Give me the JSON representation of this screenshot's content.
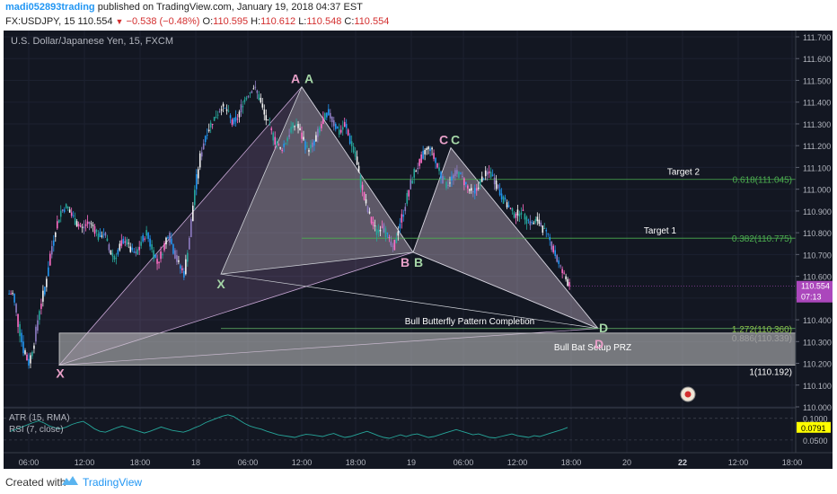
{
  "header": {
    "author": "madi052893trading",
    "published": "published on TradingView.com, January 19, 2018 04:37 EST",
    "symbol": "FX:USDJPY, 15",
    "last": "110.554",
    "change": "−0.538 (−0.48%)",
    "o_label": "O:",
    "o_value": "110.595",
    "h_label": "H:",
    "h_value": "110.612",
    "l_label": "L:",
    "l_value": "110.548",
    "c_label": "C:",
    "c_value": "110.554"
  },
  "footer": {
    "created_with": "Created with",
    "brand": "TradingView"
  },
  "chart_data": {
    "type": "candlestick",
    "title": "U.S. Dollar/Japanese Yen, 15, FXCM",
    "ylim": [
      110.0,
      111.75
    ],
    "price_ticks": [
      "111.700",
      "111.600",
      "111.500",
      "111.400",
      "111.300",
      "111.200",
      "111.100",
      "111.000",
      "110.900",
      "110.800",
      "110.700",
      "110.600",
      "110.500",
      "110.400",
      "110.300",
      "110.200",
      "110.100",
      "110.000"
    ],
    "time_ticks": [
      "06:00",
      "12:00",
      "18:00",
      "18",
      "06:00",
      "12:00",
      "18:00",
      "19",
      "06:00",
      "12:00",
      "18:00",
      "20",
      "22",
      "12:00",
      "18:00"
    ],
    "time_tick_bold": [
      false,
      false,
      false,
      false,
      false,
      false,
      false,
      false,
      false,
      false,
      false,
      false,
      true,
      false,
      false
    ],
    "last_price": {
      "value": "110.554",
      "countdown": "07:13"
    },
    "pattern_points": [
      {
        "name": "X",
        "price": 110.192
      },
      {
        "name": "A",
        "price": 111.47
      },
      {
        "name": "X",
        "price": 110.61
      },
      {
        "name": "B",
        "price": 110.71
      },
      {
        "name": "C",
        "price": 111.19
      },
      {
        "name": "D",
        "price": 110.36
      }
    ],
    "point_labels": {
      "X1": "X",
      "A1": "A",
      "A2": "A",
      "X2": "X",
      "B1": "B",
      "B2": "B",
      "C1": "C",
      "C2": "C",
      "D1": "D",
      "D2": "D"
    },
    "levels": [
      {
        "label": "Target 2",
        "ratio": "0.618(111.045)",
        "price": 111.045
      },
      {
        "label": "Target 1",
        "ratio": "0.382(110.775)",
        "price": 110.775
      },
      {
        "label": "Bull Butterfly Pattern Completion",
        "ratio": "1.272(110.360)",
        "price": 110.36
      },
      {
        "label": "Bull Bat Setup PRZ",
        "ratio": "0.886(110.339)",
        "price": 110.339
      },
      {
        "label": "",
        "ratio": "1(110.192)",
        "price": 110.192
      }
    ],
    "series": [
      {
        "prices": [
          110.52,
          110.38,
          110.26,
          110.2,
          110.3,
          110.45,
          110.55,
          110.7,
          110.82,
          110.9,
          110.92,
          110.88,
          110.84,
          110.82,
          110.85,
          110.83,
          110.78,
          110.8,
          110.72,
          110.68,
          110.74,
          110.77,
          110.72,
          110.7,
          110.76,
          110.8,
          110.72,
          110.66,
          110.72,
          110.8,
          110.72,
          110.65,
          110.61,
          110.78,
          111.0,
          111.15,
          111.25,
          111.3,
          111.34,
          111.38,
          111.36,
          111.3,
          111.33,
          111.4,
          111.44,
          111.47,
          111.42,
          111.34,
          111.28,
          111.22,
          111.18,
          111.22,
          111.28,
          111.3,
          111.24,
          111.18,
          111.2,
          111.26,
          111.32,
          111.35,
          111.3,
          111.26,
          111.3,
          111.22,
          111.15,
          111.02,
          110.92,
          110.85,
          110.8,
          110.84,
          110.78,
          110.72,
          110.82,
          110.9,
          111.0,
          111.08,
          111.12,
          111.18,
          111.19,
          111.12,
          111.06,
          111.02,
          111.05,
          111.08,
          111.05,
          111.0,
          110.98,
          111.02,
          111.06,
          111.08,
          111.04,
          110.98,
          110.94,
          110.9,
          110.88,
          110.9,
          110.86,
          110.84,
          110.86,
          110.82,
          110.78,
          110.72,
          110.65,
          110.6,
          110.56
        ]
      }
    ],
    "indicator": {
      "name": "ATR (15, RMA)",
      "name2": "RSI (7, close)",
      "ticks": [
        "0.1000",
        "0.0500"
      ],
      "last": "0.0791",
      "ylim": [
        0.025,
        0.12
      ],
      "values": [
        0.07,
        0.075,
        0.08,
        0.085,
        0.09,
        0.094,
        0.089,
        0.082,
        0.078,
        0.076,
        0.08,
        0.086,
        0.09,
        0.093,
        0.085,
        0.076,
        0.07,
        0.068,
        0.073,
        0.078,
        0.082,
        0.078,
        0.074,
        0.07,
        0.066,
        0.07,
        0.075,
        0.08,
        0.076,
        0.072,
        0.07,
        0.068,
        0.072,
        0.078,
        0.083,
        0.09,
        0.095,
        0.1,
        0.105,
        0.108,
        0.104,
        0.096,
        0.088,
        0.082,
        0.078,
        0.075,
        0.07,
        0.066,
        0.062,
        0.06,
        0.058,
        0.056,
        0.06,
        0.063,
        0.062,
        0.06,
        0.058,
        0.062,
        0.065,
        0.06,
        0.056,
        0.058,
        0.062,
        0.066,
        0.07,
        0.065,
        0.06,
        0.056,
        0.054,
        0.058,
        0.062,
        0.058,
        0.062,
        0.064,
        0.06,
        0.056,
        0.058,
        0.062,
        0.066,
        0.07,
        0.074,
        0.07,
        0.066,
        0.062,
        0.064,
        0.06,
        0.056,
        0.055,
        0.058,
        0.061,
        0.064,
        0.06,
        0.058,
        0.056,
        0.06,
        0.058,
        0.062,
        0.066,
        0.07,
        0.074,
        0.079
      ]
    }
  }
}
